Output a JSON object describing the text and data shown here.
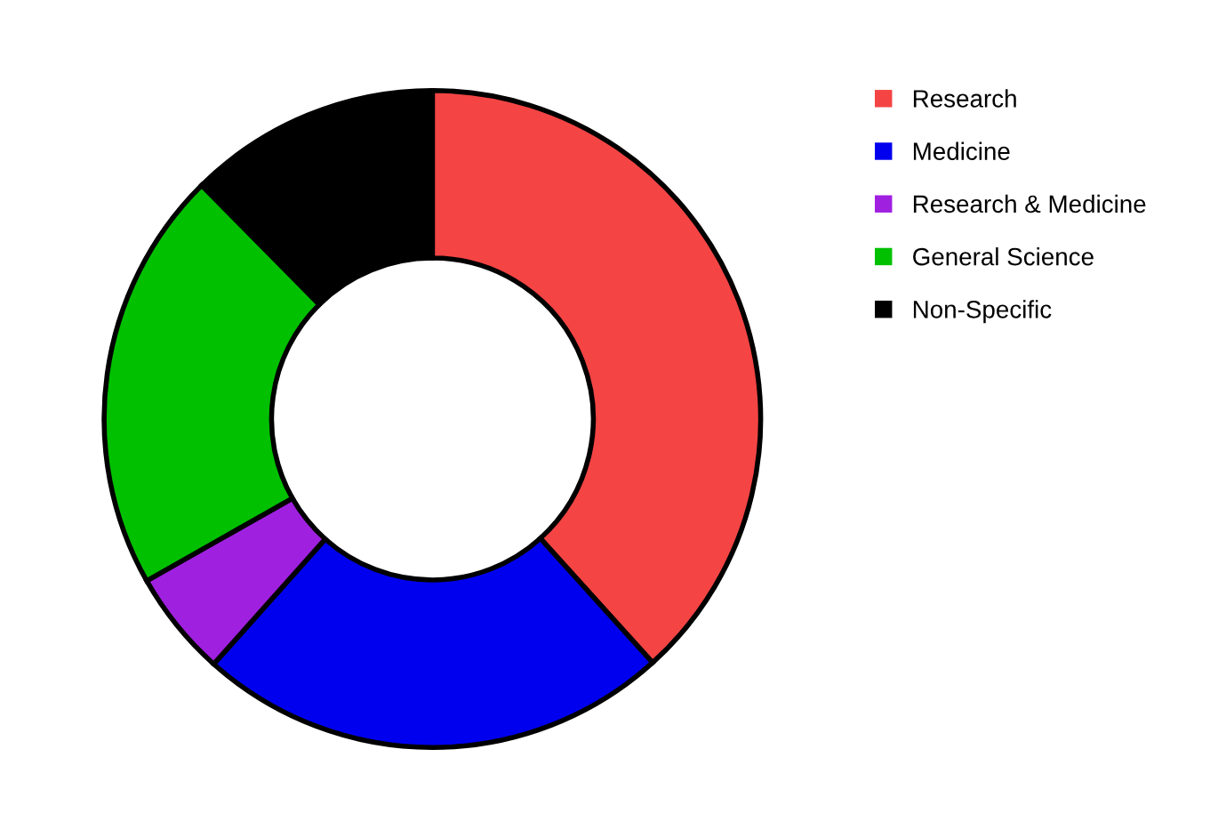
{
  "chart_data": {
    "type": "donut",
    "categories": [
      "Research",
      "Medicine",
      "Research & Medicine",
      "General Science",
      "Non-Specific"
    ],
    "values": [
      38.3,
      23.3,
      5.2,
      20.8,
      12.4
    ],
    "colors": [
      "#f44444",
      "#0000ee",
      "#a020e0",
      "#00c000",
      "#000000"
    ],
    "legend": "right"
  }
}
